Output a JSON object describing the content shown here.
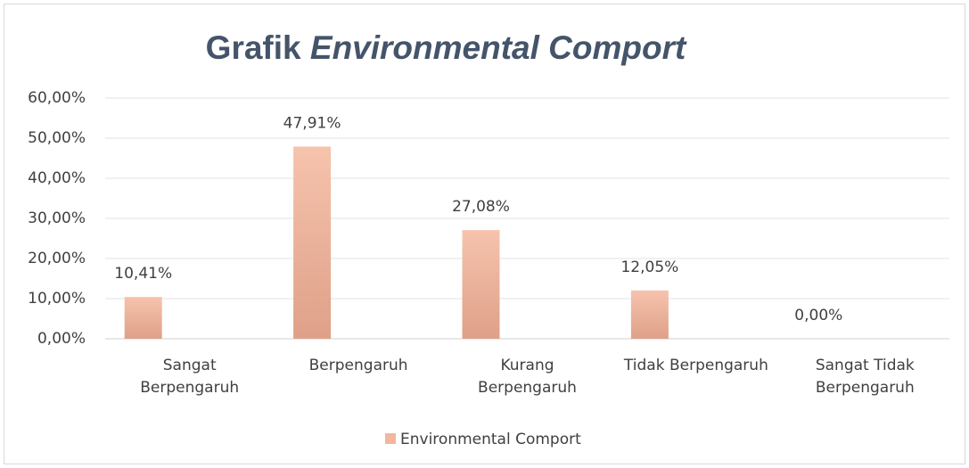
{
  "chart_data": {
    "type": "bar",
    "title_parts": [
      "Grafik",
      "Environmental Comport"
    ],
    "categories": [
      "Sangat Berpengaruh",
      "Berpengaruh",
      "Kurang Berpengaruh",
      "Tidak Berpengaruh",
      "Sangat Tidak Berpengaruh"
    ],
    "series": [
      {
        "name": "Environmental Comport",
        "color": "#f2b79c",
        "values": [
          10.41,
          47.91,
          27.08,
          12.05,
          0
        ],
        "value_labels": [
          "10,41%",
          "47,91%",
          "27,08%",
          "12,05%",
          "0,00%"
        ]
      }
    ],
    "ylim": [
      0,
      60
    ],
    "yticks": [
      {
        "value": 0,
        "label": "0,00%"
      },
      {
        "value": 10,
        "label": "10,00%"
      },
      {
        "value": 20,
        "label": "20,00%"
      },
      {
        "value": 30,
        "label": "30,00%"
      },
      {
        "value": 40,
        "label": "40,00%"
      },
      {
        "value": 50,
        "label": "50,00%"
      },
      {
        "value": 60,
        "label": "60,00%"
      }
    ],
    "grid": true,
    "legend": "bottom"
  }
}
